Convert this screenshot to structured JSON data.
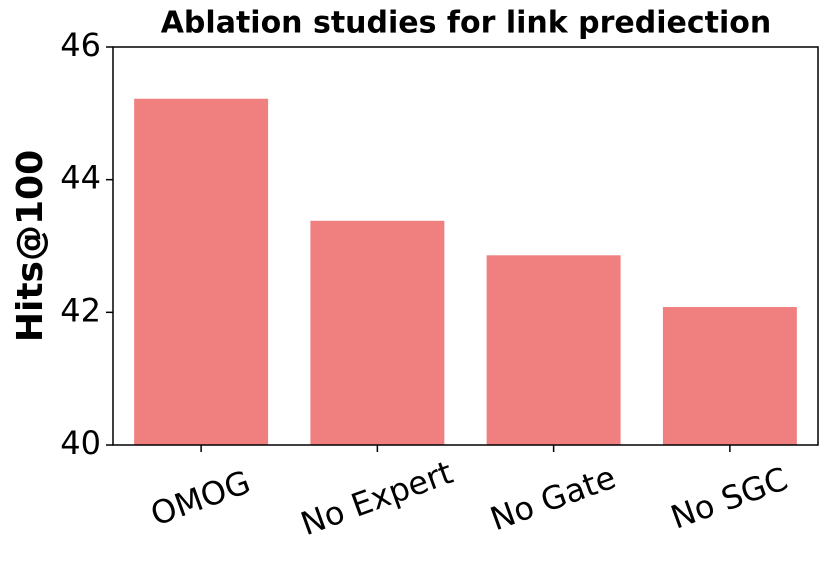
{
  "chart_data": {
    "type": "bar",
    "title": "Ablation studies for link prediection",
    "ylabel": "Hits@100",
    "categories": [
      "OMOG",
      "No Expert",
      "No Gate",
      "No SGC"
    ],
    "values": [
      45.22,
      43.38,
      42.86,
      42.08
    ],
    "color": "#f08080",
    "ylim": [
      40,
      46
    ],
    "yticks": [
      40,
      42,
      44,
      46
    ],
    "grid": false
  }
}
